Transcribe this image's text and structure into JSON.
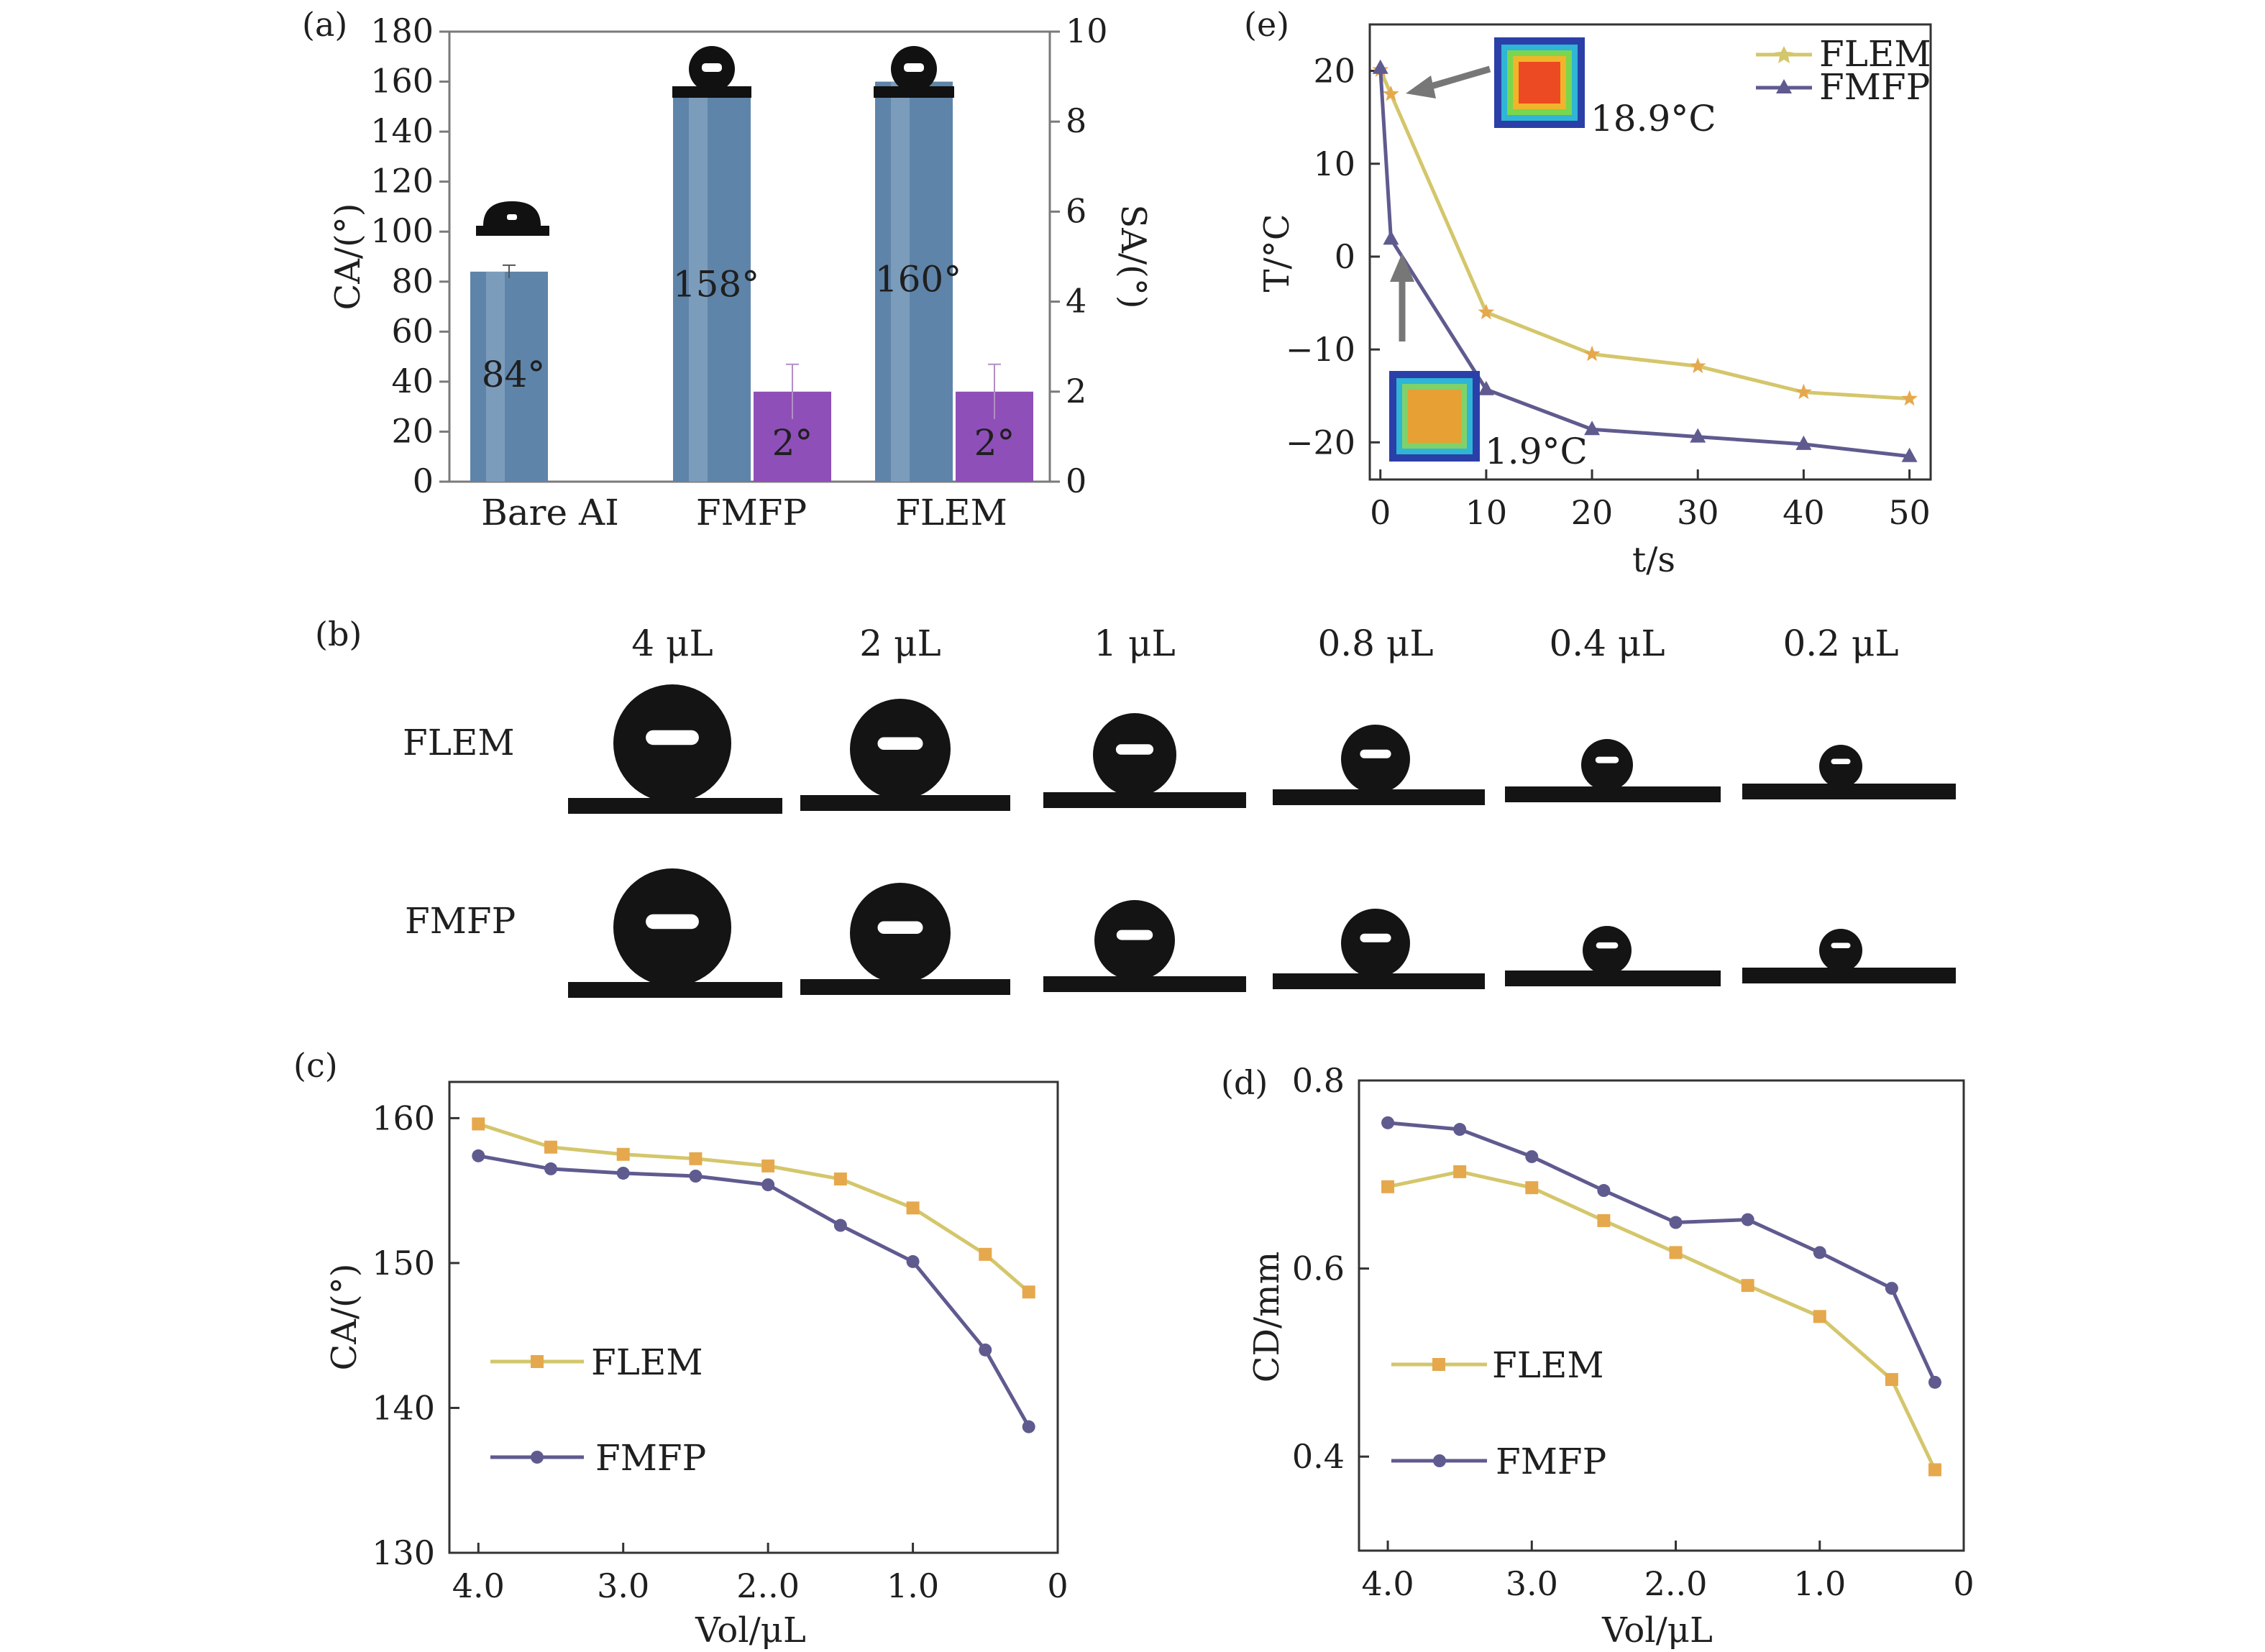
{
  "panel_letters": [
    "(a)",
    "(b)",
    "(c)",
    "(d)",
    "(e)"
  ],
  "chart_data": [
    {
      "id": "a",
      "type": "bar",
      "categories": [
        "Bare AI",
        "FMFP",
        "FLEM"
      ],
      "series": [
        {
          "name": "CA",
          "values": [
            84,
            158,
            160
          ],
          "axis": "left",
          "color": "#5f84a9",
          "labels": [
            "84°",
            "158°",
            "160°"
          ]
        },
        {
          "name": "SA",
          "values": [
            null,
            2,
            2
          ],
          "axis": "right",
          "color": "#8f4fb8",
          "labels": [
            "",
            "2°",
            "2°"
          ]
        }
      ],
      "ylabel": "CA/(°)",
      "y2label": "SA/(°)",
      "ylim": [
        0,
        180
      ],
      "y2lim": [
        0,
        10
      ],
      "yticks": [
        0,
        20,
        40,
        60,
        80,
        100,
        120,
        140,
        160,
        180
      ],
      "y2ticks": [
        0,
        2,
        4,
        6,
        8,
        10
      ],
      "error_bars": true
    },
    {
      "id": "b",
      "type": "table",
      "columns": [
        "4 μL",
        "2 μL",
        "1 μL",
        "0.8 μL",
        "0.4 μL",
        "0.2 μL"
      ],
      "rows": [
        "FLEM",
        "FMFP"
      ]
    },
    {
      "id": "c",
      "type": "line",
      "x": [
        4.0,
        3.5,
        3.0,
        2.5,
        2.0,
        1.5,
        1.0,
        0.5,
        0.2
      ],
      "series": [
        {
          "name": "FLEM",
          "values": [
            159.6,
            158.0,
            157.5,
            157.2,
            156.7,
            155.8,
            153.8,
            150.6,
            148.0
          ],
          "color": "#d4c66b",
          "marker": "square"
        },
        {
          "name": "FMFP",
          "values": [
            157.4,
            156.5,
            156.2,
            156.0,
            155.4,
            152.6,
            150.1,
            144.0,
            138.7
          ],
          "color": "#5f5b8f",
          "marker": "circle"
        }
      ],
      "xlabel": "Vol/μL",
      "ylabel": "CA/(°)",
      "xlim": [
        4.2,
        0
      ],
      "ylim": [
        130,
        162.5
      ],
      "xticks": [
        4.0,
        3.0,
        2.0,
        1.0,
        0
      ],
      "xtick_labels": [
        "4.0",
        "3.0",
        "2..0",
        "1.0",
        "0"
      ],
      "yticks": [
        130,
        140,
        150,
        160
      ],
      "legend_position": "lower-left"
    },
    {
      "id": "d",
      "type": "line",
      "x": [
        4.0,
        3.5,
        3.0,
        2.5,
        2.0,
        1.5,
        1.0,
        0.5,
        0.2
      ],
      "series": [
        {
          "name": "FLEM",
          "values": [
            0.687,
            0.703,
            0.686,
            0.651,
            0.617,
            0.582,
            0.549,
            0.482,
            0.386
          ],
          "color": "#d4c66b",
          "marker": "square"
        },
        {
          "name": "FMFP",
          "values": [
            0.755,
            0.748,
            0.719,
            0.683,
            0.649,
            0.652,
            0.617,
            0.579,
            0.479
          ],
          "color": "#5f5b8f",
          "marker": "circle"
        }
      ],
      "xlabel": "Vol/μL",
      "ylabel": "CD/mm",
      "xlim": [
        4.2,
        0
      ],
      "ylim": [
        0.3,
        0.8
      ],
      "xticks": [
        4.0,
        3.0,
        2.0,
        1.0,
        0
      ],
      "xtick_labels": [
        "4.0",
        "3.0",
        "2..0",
        "1.0",
        "0"
      ],
      "yticks": [
        0.4,
        0.6,
        0.8
      ],
      "legend_position": "lower-left"
    },
    {
      "id": "e",
      "type": "line",
      "x": [
        0,
        1,
        10,
        20,
        30,
        40,
        50
      ],
      "series": [
        {
          "name": "FLEM",
          "values": [
            20.1,
            17.5,
            -6.0,
            -10.5,
            -11.8,
            -14.6,
            -15.3
          ],
          "color": "#d4c66b",
          "marker": "star"
        },
        {
          "name": "FMFP",
          "values": [
            20.3,
            1.9,
            -14.3,
            -18.6,
            -19.4,
            -20.2,
            -21.5
          ],
          "color": "#5f5b8f",
          "marker": "triangle"
        }
      ],
      "xlabel": "t/s",
      "ylabel": "T/°C",
      "xlim": [
        -1,
        52
      ],
      "ylim": [
        -24,
        25
      ],
      "xticks": [
        0,
        10,
        20,
        30,
        40,
        50
      ],
      "yticks": [
        -20,
        -10,
        0,
        10,
        20
      ],
      "legend_position": "top-right",
      "annotations": [
        "18.9°C",
        "1.9°C"
      ]
    }
  ]
}
